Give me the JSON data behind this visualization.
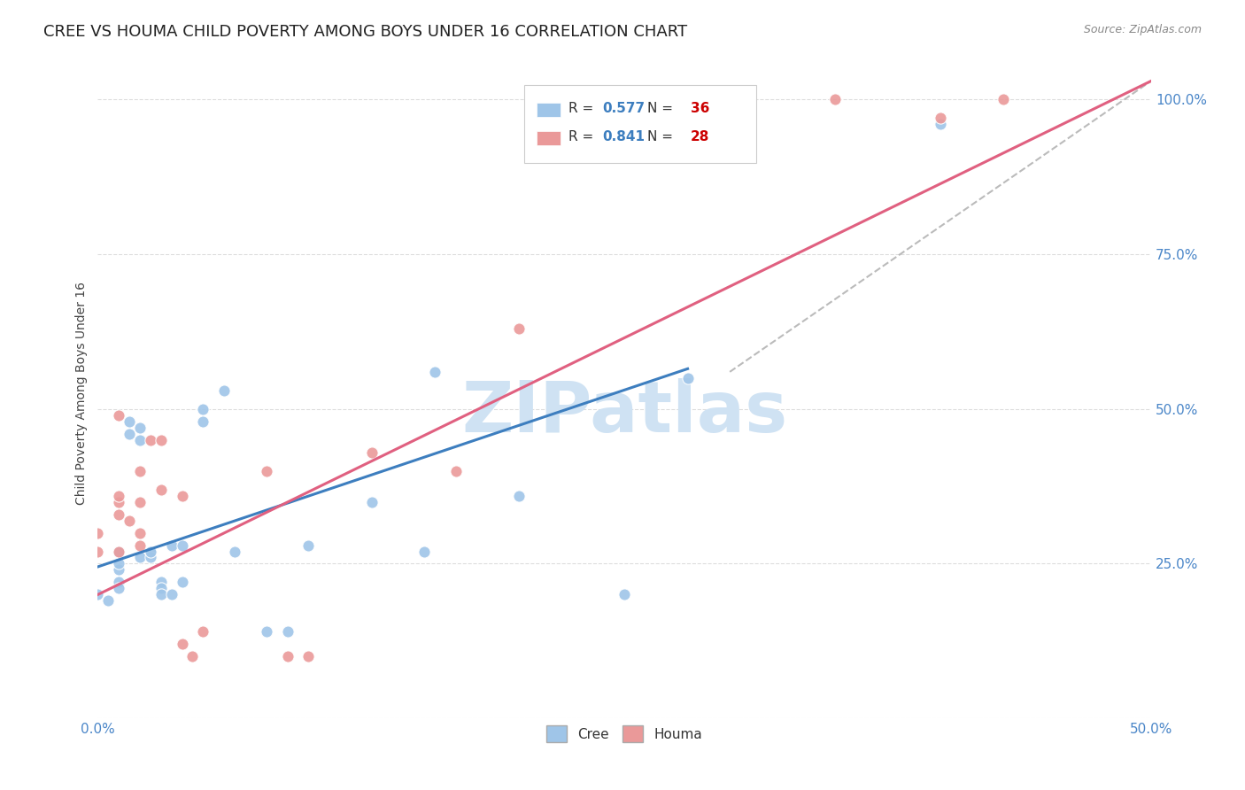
{
  "title": "CREE VS HOUMA CHILD POVERTY AMONG BOYS UNDER 16 CORRELATION CHART",
  "source": "Source: ZipAtlas.com",
  "ylabel": "Child Poverty Among Boys Under 16",
  "xlim": [
    0,
    0.5
  ],
  "ylim": [
    0,
    1.05
  ],
  "cree_color": "#9fc5e8",
  "houma_color": "#ea9999",
  "cree_line_color": "#3d7ebf",
  "houma_line_color": "#e06080",
  "dashed_line_color": "#aaaaaa",
  "R_cree": 0.577,
  "N_cree": 36,
  "R_houma": 0.841,
  "N_houma": 28,
  "R_color": "#3d7ebf",
  "N_color": "#cc0000",
  "background_color": "#ffffff",
  "grid_color": "#dddddd",
  "watermark": "ZIPatlas",
  "watermark_color": "#cfe2f3",
  "title_fontsize": 13,
  "axis_label_fontsize": 10,
  "tick_fontsize": 11,
  "cree_points": [
    [
      0.0,
      0.2
    ],
    [
      0.005,
      0.19
    ],
    [
      0.01,
      0.22
    ],
    [
      0.01,
      0.27
    ],
    [
      0.01,
      0.24
    ],
    [
      0.01,
      0.21
    ],
    [
      0.015,
      0.46
    ],
    [
      0.015,
      0.48
    ],
    [
      0.02,
      0.47
    ],
    [
      0.02,
      0.45
    ],
    [
      0.02,
      0.26
    ],
    [
      0.025,
      0.27
    ],
    [
      0.025,
      0.26
    ],
    [
      0.025,
      0.27
    ],
    [
      0.03,
      0.22
    ],
    [
      0.03,
      0.21
    ],
    [
      0.03,
      0.2
    ],
    [
      0.035,
      0.2
    ],
    [
      0.035,
      0.28
    ],
    [
      0.04,
      0.22
    ],
    [
      0.04,
      0.28
    ],
    [
      0.05,
      0.5
    ],
    [
      0.05,
      0.48
    ],
    [
      0.06,
      0.53
    ],
    [
      0.065,
      0.27
    ],
    [
      0.08,
      0.14
    ],
    [
      0.09,
      0.14
    ],
    [
      0.1,
      0.28
    ],
    [
      0.13,
      0.35
    ],
    [
      0.155,
      0.27
    ],
    [
      0.16,
      0.56
    ],
    [
      0.2,
      0.36
    ],
    [
      0.25,
      0.2
    ],
    [
      0.28,
      0.55
    ],
    [
      0.4,
      0.96
    ],
    [
      0.01,
      0.25
    ]
  ],
  "houma_points": [
    [
      0.0,
      0.27
    ],
    [
      0.0,
      0.3
    ],
    [
      0.01,
      0.27
    ],
    [
      0.01,
      0.33
    ],
    [
      0.01,
      0.35
    ],
    [
      0.01,
      0.36
    ],
    [
      0.01,
      0.49
    ],
    [
      0.015,
      0.32
    ],
    [
      0.02,
      0.28
    ],
    [
      0.02,
      0.35
    ],
    [
      0.02,
      0.3
    ],
    [
      0.02,
      0.4
    ],
    [
      0.025,
      0.45
    ],
    [
      0.03,
      0.45
    ],
    [
      0.03,
      0.37
    ],
    [
      0.04,
      0.36
    ],
    [
      0.04,
      0.12
    ],
    [
      0.045,
      0.1
    ],
    [
      0.05,
      0.14
    ],
    [
      0.08,
      0.4
    ],
    [
      0.09,
      0.1
    ],
    [
      0.1,
      0.1
    ],
    [
      0.13,
      0.43
    ],
    [
      0.17,
      0.4
    ],
    [
      0.2,
      0.63
    ],
    [
      0.35,
      1.0
    ],
    [
      0.4,
      0.97
    ],
    [
      0.43,
      1.0
    ]
  ],
  "cree_line": [
    [
      0.0,
      0.245
    ],
    [
      0.28,
      0.565
    ]
  ],
  "houma_line": [
    [
      0.0,
      0.2
    ],
    [
      0.5,
      1.03
    ]
  ],
  "dashed_line": [
    [
      0.3,
      0.56
    ],
    [
      0.5,
      1.03
    ]
  ]
}
